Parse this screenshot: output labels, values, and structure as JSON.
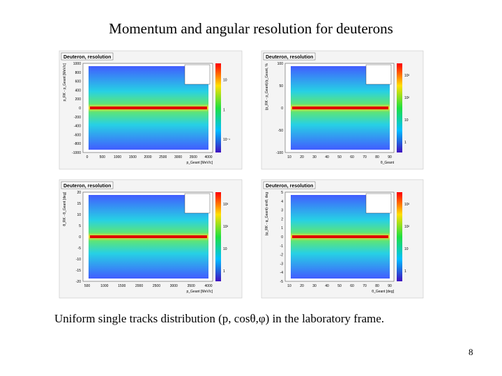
{
  "slide": {
    "title": "Momentum and angular resolution for deuterons",
    "caption": "Uniform single tracks distribution  (p, cosθ,φ) in the laboratory frame.",
    "page_number": "8",
    "panels": [
      {
        "title": "Deuteron, resolution",
        "ylabel": "p_RK - p_Geant [MeV/c]",
        "xlabel": "p_Geant [MeV/c]",
        "yticks": [
          "1000",
          "800",
          "600",
          "400",
          "200",
          "0",
          "-200",
          "-400",
          "-600",
          "-800",
          "-1000"
        ],
        "xticks": [
          "0",
          "500",
          "1000",
          "1500",
          "2000",
          "2500",
          "3000",
          "3500",
          "4000"
        ],
        "zticks": [
          "10",
          "1",
          "10⁻¹"
        ]
      },
      {
        "title": "Deuteron, resolution",
        "ylabel": "(p_RK - p_Geant)/p_Geant, %",
        "xlabel": "θ_Geant",
        "yticks": [
          "100",
          "50",
          "0",
          "-50",
          "-100"
        ],
        "xticks": [
          "10",
          "20",
          "30",
          "40",
          "50",
          "60",
          "70",
          "80",
          "90"
        ],
        "zticks": [
          "10³",
          "10²",
          "10",
          "1"
        ]
      },
      {
        "title": "Deuteron, resolution",
        "ylabel": "θ_RK - θ_Geant [deg]",
        "xlabel": "p_Geant [MeV/c]",
        "yticks": [
          "20",
          "15",
          "10",
          "5",
          "0",
          "-5",
          "-10",
          "-15",
          "-20"
        ],
        "xticks": [
          "500",
          "1000",
          "1500",
          "2000",
          "2500",
          "3000",
          "3500",
          "4000"
        ],
        "zticks": [
          "10³",
          "10²",
          "10",
          "1"
        ]
      },
      {
        "title": "Deuteron, resolution",
        "ylabel": "(φ_RK - φ_Geant)·sinθ, deg",
        "xlabel": "θ_Geant [deg]",
        "yticks": [
          "5",
          "4",
          "3",
          "2",
          "1",
          "0",
          "-1",
          "-2",
          "-3",
          "-4",
          "-5"
        ],
        "xticks": [
          "10",
          "20",
          "30",
          "40",
          "50",
          "60",
          "70",
          "80",
          "90"
        ],
        "zticks": [
          "10³",
          "10²",
          "10",
          "1"
        ]
      }
    ]
  }
}
